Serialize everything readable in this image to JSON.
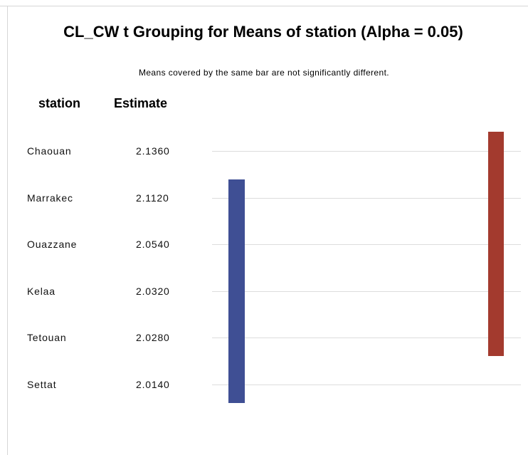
{
  "title": "CL_CW t Grouping for Means of station (Alpha = 0.05)",
  "subtitle": "Means covered by the same bar are not significantly different.",
  "columns": [
    "station",
    "Estimate"
  ],
  "rows": [
    [
      "Chaouan",
      "2.1360"
    ],
    [
      "Marrakec",
      "2.1120"
    ],
    [
      "Ouazzane",
      "2.0540"
    ],
    [
      "Kelaa",
      "2.0320"
    ],
    [
      "Tetouan",
      "2.0280"
    ],
    [
      "Settat",
      "2.0140"
    ]
  ]
}
